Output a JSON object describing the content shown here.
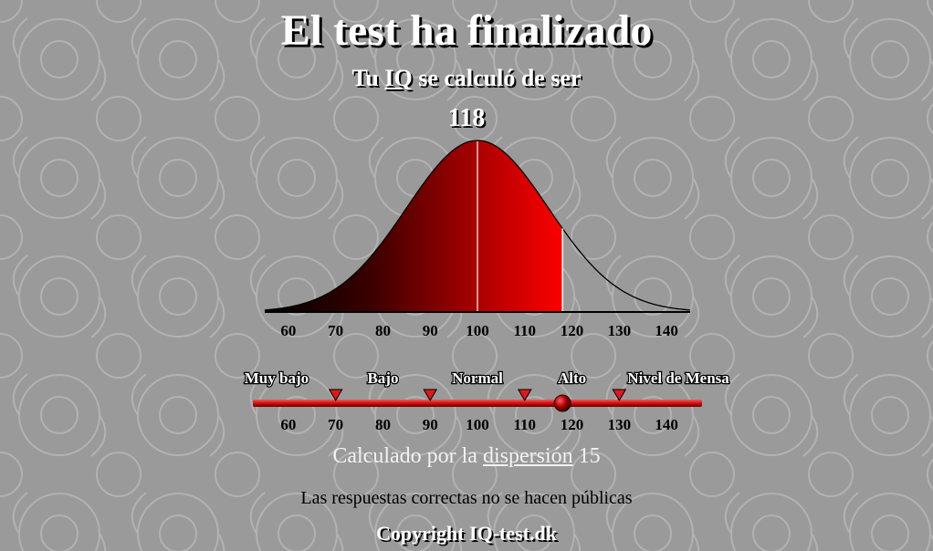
{
  "page": {
    "title": "El test ha finalizado",
    "subtitle_prefix": "Tu",
    "subtitle_link": "IQ",
    "subtitle_suffix": "se calculó de ser",
    "iq_score": "118",
    "dispersion_prefix": "Calculado por la",
    "dispersion_link": "dispersión",
    "dispersion_value": "15",
    "answers_note": "Las respuestas correctas no se hacen públicas",
    "copyright": "Copyright IQ-test.dk"
  },
  "colors": {
    "background": "#9a9a9a",
    "accent_red": "#ff0000",
    "dark_red": "#5a0000",
    "bar_red": "#cc1010"
  },
  "chart_data": {
    "type": "area",
    "distribution": "normal",
    "mean": 100,
    "sd": 15,
    "score": 118,
    "xlim": [
      55,
      145
    ],
    "x_ticks": [
      "60",
      "70",
      "80",
      "90",
      "100",
      "110",
      "120",
      "130",
      "140"
    ],
    "x_tick_values": [
      60,
      70,
      80,
      90,
      100,
      110,
      120,
      130,
      140
    ]
  },
  "scale": {
    "score": 118,
    "thresholds": [
      70,
      90,
      110,
      130
    ],
    "categories": [
      "Muy bajo",
      "Bajo",
      "Normal",
      "Alto",
      "Nivel de Mensa"
    ],
    "category_centers": [
      57.5,
      80,
      100,
      120,
      142.5
    ],
    "ticks": [
      "60",
      "70",
      "80",
      "90",
      "100",
      "110",
      "120",
      "130",
      "140"
    ],
    "tick_values": [
      60,
      70,
      80,
      90,
      100,
      110,
      120,
      130,
      140
    ]
  }
}
